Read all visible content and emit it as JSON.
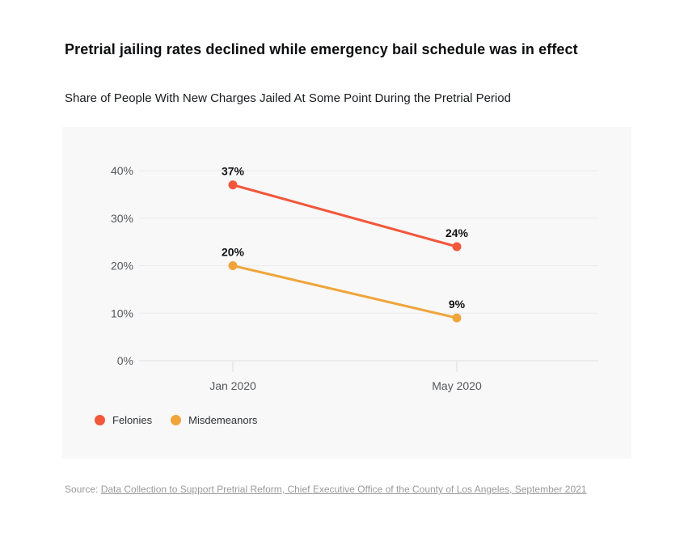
{
  "header": {
    "title": "Pretrial jailing rates declined while emergency bail schedule was in effect",
    "subtitle": "Share of People With New Charges Jailed At Some Point During the Pretrial Period"
  },
  "chart_data": {
    "type": "line",
    "title": "Share of People With New Charges Jailed At Some Point During the Pretrial Period",
    "categories": [
      "Jan 2020",
      "May 2020"
    ],
    "series": [
      {
        "name": "Felonies",
        "values": [
          37,
          24
        ],
        "point_labels": [
          "37%",
          "24%"
        ],
        "color": "#f2573c"
      },
      {
        "name": "Misdemeanors",
        "values": [
          20,
          9
        ],
        "point_labels": [
          "20%",
          "9%"
        ],
        "color": "#f0a53c"
      }
    ],
    "xlabel": "",
    "ylabel": "",
    "ylim": [
      0,
      40
    ],
    "yticks": [
      0,
      10,
      20,
      30,
      40
    ],
    "ytick_labels": [
      "0%",
      "10%",
      "20%",
      "30%",
      "40%"
    ],
    "grid": true,
    "legend_position": "bottom-left",
    "colors": {
      "panel_background": "#f8f8f8",
      "gridline": "#ececee",
      "zero_line": "#e1e1e4",
      "tick_mark": "#dbdbde",
      "axis_text": "#55575c",
      "data_label_text": "#111214"
    }
  },
  "source": {
    "prefix": "Source: ",
    "link_text": "Data Collection to Support Pretrial Reform, Chief Executive Office of the County of Los Angeles, September 2021"
  }
}
